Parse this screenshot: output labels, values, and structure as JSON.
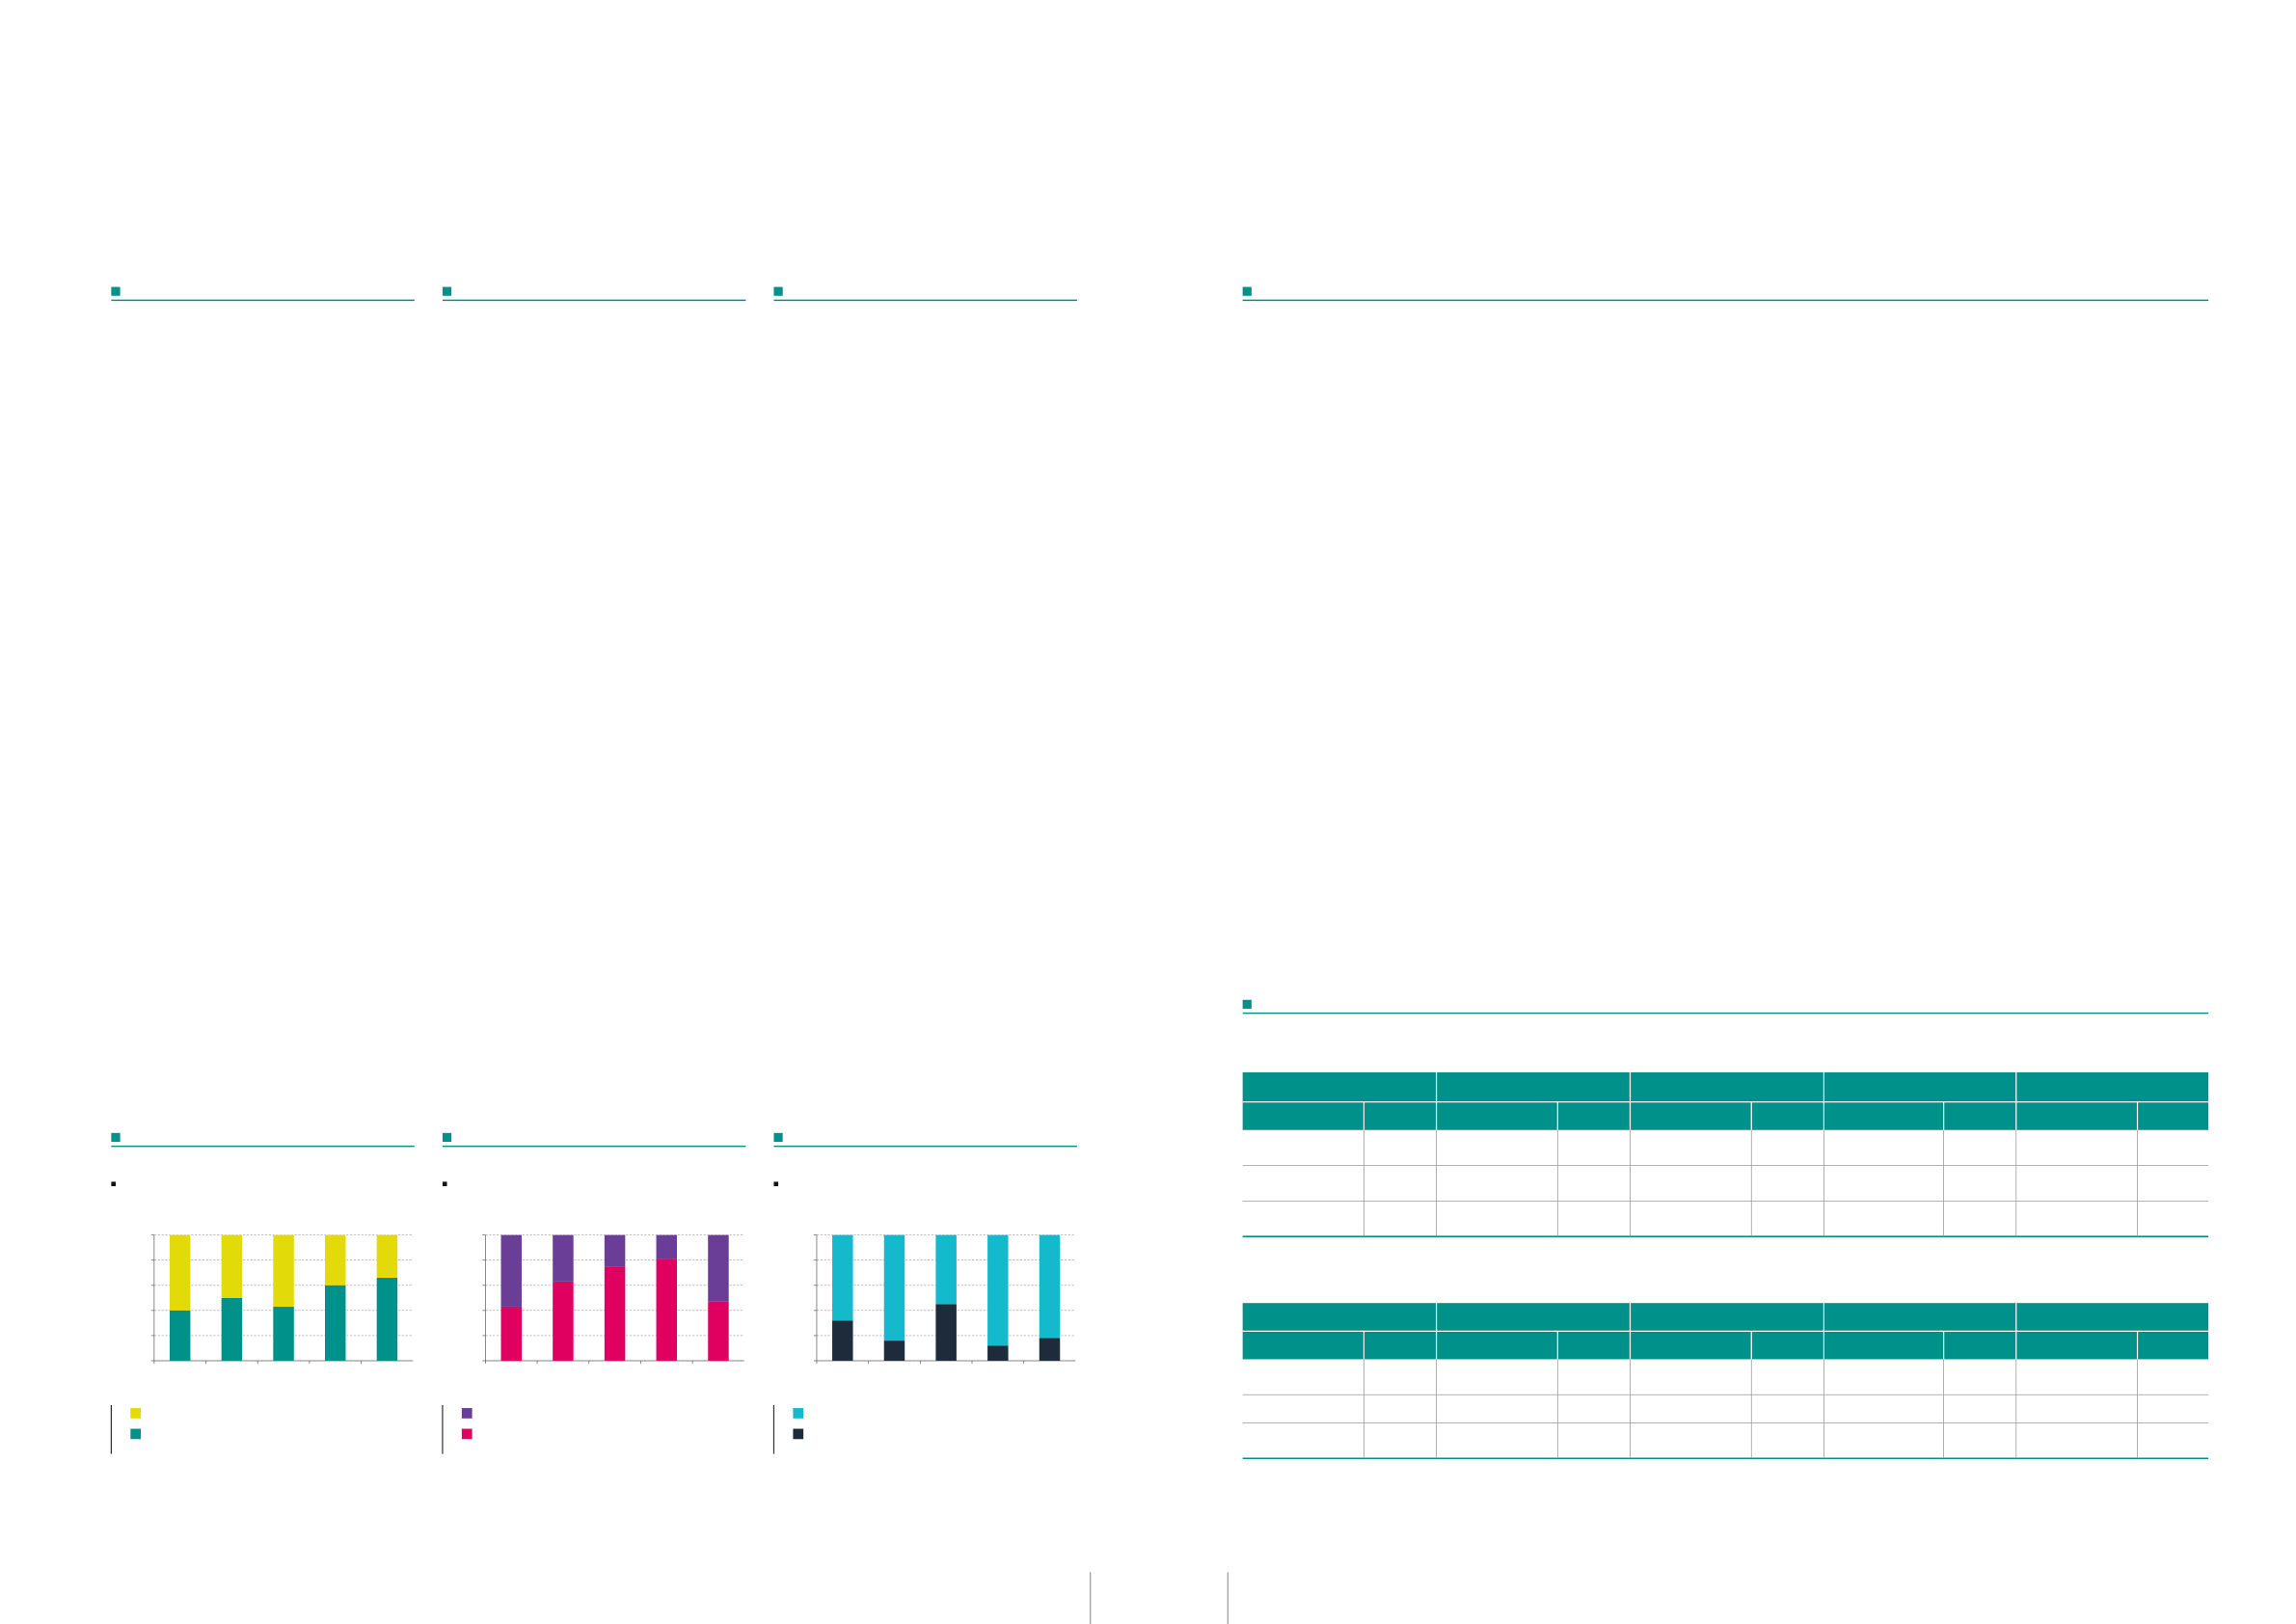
{
  "chart_data": [
    {
      "type": "bar",
      "stacked": true,
      "categories": [
        null,
        null,
        null,
        null,
        null
      ],
      "ylim": [
        0,
        100
      ],
      "yticks": [
        0,
        20,
        40,
        60,
        80,
        100
      ],
      "grid": true,
      "series": [
        {
          "color": "#00918a",
          "values": [
            40,
            50,
            43,
            60,
            66
          ]
        },
        {
          "color": "#e3db09",
          "values": [
            60,
            50,
            57,
            40,
            34
          ]
        }
      ]
    },
    {
      "type": "bar",
      "stacked": true,
      "categories": [
        null,
        null,
        null,
        null,
        null
      ],
      "ylim": [
        0,
        100
      ],
      "yticks": [
        0,
        20,
        40,
        60,
        80,
        100
      ],
      "grid": true,
      "series": [
        {
          "color": "#e0005f",
          "values": [
            43,
            63,
            75,
            81,
            47
          ]
        },
        {
          "color": "#6a3d97",
          "values": [
            57,
            37,
            25,
            19,
            53
          ]
        }
      ]
    },
    {
      "type": "bar",
      "stacked": true,
      "categories": [
        null,
        null,
        null,
        null,
        null
      ],
      "ylim": [
        0,
        100
      ],
      "yticks": [
        0,
        20,
        40,
        60,
        80,
        100
      ],
      "grid": true,
      "series": [
        {
          "color": "#1d2b3a",
          "values": [
            32,
            16,
            45,
            12,
            18
          ]
        },
        {
          "color": "#14b9cc",
          "values": [
            68,
            84,
            55,
            88,
            82
          ]
        }
      ]
    }
  ]
}
